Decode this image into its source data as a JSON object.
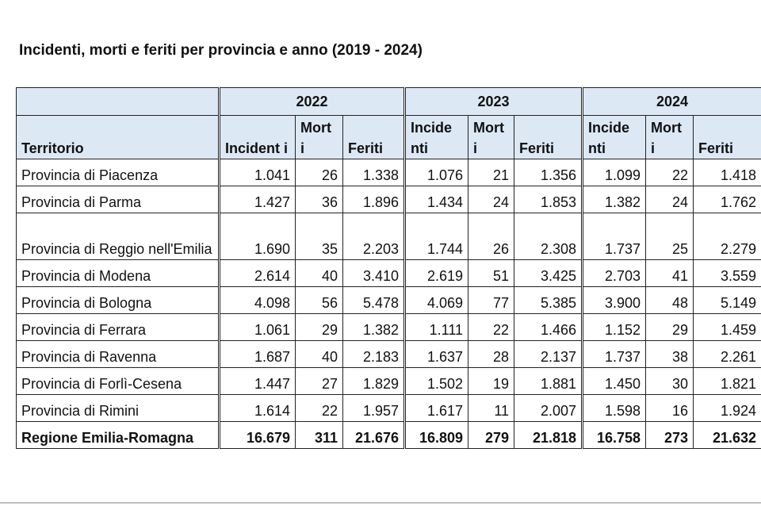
{
  "title": "Incidenti, morti e feriti per provincia e anno (2019 - 2024)",
  "header": {
    "years": [
      "2022",
      "2023",
      "2024"
    ],
    "territory_label": "Territorio",
    "columns": {
      "2022": [
        "Incident i",
        "Mort i",
        "Feriti"
      ],
      "2023": [
        "Incide nti",
        "Mort i",
        "Feriti"
      ],
      "2024": [
        "Incide nti",
        "Mort i",
        "Feriti"
      ]
    }
  },
  "rows": [
    {
      "name": "Provincia di Piacenza",
      "values": [
        "1.041",
        "26",
        "1.338",
        "1.076",
        "21",
        "1.356",
        "1.099",
        "22",
        "1.418"
      ]
    },
    {
      "name": "Provincia di Parma",
      "values": [
        "1.427",
        "36",
        "1.896",
        "1.434",
        "24",
        "1.853",
        "1.382",
        "24",
        "1.762"
      ]
    },
    {
      "name": "Provincia di Reggio nell'Emilia",
      "values": [
        "1.690",
        "35",
        "2.203",
        "1.744",
        "26",
        "2.308",
        "1.737",
        "25",
        "2.279"
      ]
    },
    {
      "name": "Provincia di Modena",
      "values": [
        "2.614",
        "40",
        "3.410",
        "2.619",
        "51",
        "3.425",
        "2.703",
        "41",
        "3.559"
      ]
    },
    {
      "name": "Provincia di Bologna",
      "values": [
        "4.098",
        "56",
        "5.478",
        "4.069",
        "77",
        "5.385",
        "3.900",
        "48",
        "5.149"
      ]
    },
    {
      "name": "Provincia di Ferrara",
      "values": [
        "1.061",
        "29",
        "1.382",
        "1.111",
        "22",
        "1.466",
        "1.152",
        "29",
        "1.459"
      ]
    },
    {
      "name": "Provincia di Ravenna",
      "values": [
        "1.687",
        "40",
        "2.183",
        "1.637",
        "28",
        "2.137",
        "1.737",
        "38",
        "2.261"
      ]
    },
    {
      "name": "Provincia di Forlì-Cesena",
      "values": [
        "1.447",
        "27",
        "1.829",
        "1.502",
        "19",
        "1.881",
        "1.450",
        "30",
        "1.821"
      ]
    },
    {
      "name": "Provincia di Rimini",
      "values": [
        "1.614",
        "22",
        "1.957",
        "1.617",
        "11",
        "2.007",
        "1.598",
        "16",
        "1.924"
      ]
    }
  ],
  "total": {
    "name": "Regione Emilia-Romagna",
    "values": [
      "16.679",
      "311",
      "21.676",
      "16.809",
      "279",
      "21.818",
      "16.758",
      "273",
      "21.632"
    ]
  }
}
